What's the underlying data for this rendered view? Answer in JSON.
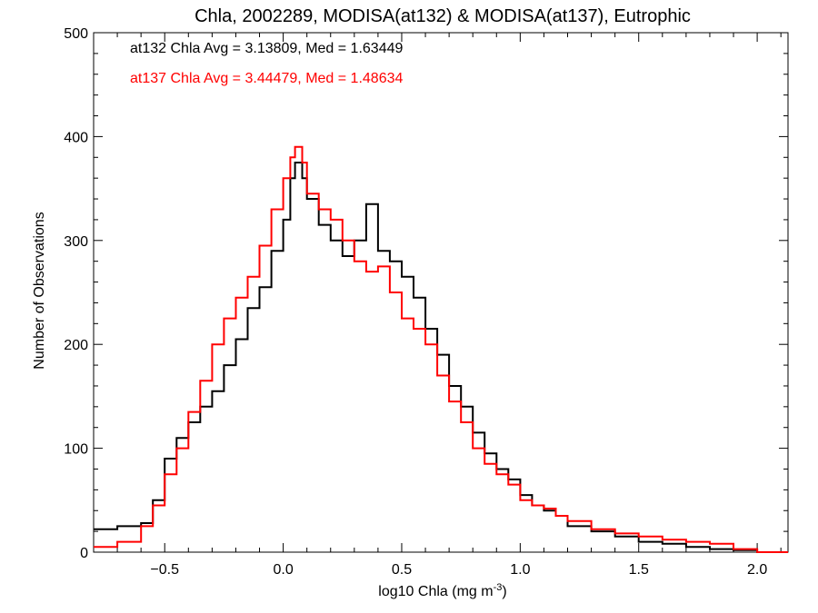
{
  "chart_data": {
    "type": "histogram",
    "title": "Chla, 2002289, MODISA(at132) & MODISA(at137), Eutrophic",
    "xlabel_main": "log10 Chla (mg m",
    "xlabel_sup": "-3",
    "xlabel_end": ")",
    "ylabel": "Number of Observations",
    "xlim": [
      -0.8,
      2.13
    ],
    "ylim": [
      0,
      500
    ],
    "x_ticks": [
      -0.5,
      0.0,
      0.5,
      1.0,
      1.5,
      2.0
    ],
    "x_tick_labels": [
      "−0.5",
      "0.0",
      "0.5",
      "1.0",
      "1.5",
      "2.0"
    ],
    "y_ticks": [
      0,
      100,
      200,
      300,
      400,
      500
    ],
    "y_tick_labels": [
      "0",
      "100",
      "200",
      "300",
      "400",
      "500"
    ],
    "annotations": [
      {
        "text": "at132 Chla Avg = 3.13809, Med = 1.63449",
        "color": "#000000"
      },
      {
        "text": "at137 Chla Avg = 3.44479, Med = 1.48634",
        "color": "#ff0000"
      }
    ],
    "series": [
      {
        "color": "#000000",
        "x": [
          -0.8,
          -0.7,
          -0.6,
          -0.55,
          -0.5,
          -0.45,
          -0.4,
          -0.35,
          -0.3,
          -0.25,
          -0.2,
          -0.15,
          -0.1,
          -0.05,
          0.0,
          0.03,
          0.05,
          0.08,
          0.1,
          0.15,
          0.2,
          0.25,
          0.3,
          0.35,
          0.4,
          0.45,
          0.5,
          0.55,
          0.6,
          0.65,
          0.7,
          0.75,
          0.8,
          0.85,
          0.9,
          0.95,
          1.0,
          1.05,
          1.1,
          1.15,
          1.2,
          1.3,
          1.4,
          1.5,
          1.6,
          1.7,
          1.8,
          1.9,
          2.0,
          2.13
        ],
        "y": [
          22,
          25,
          28,
          50,
          90,
          110,
          125,
          140,
          155,
          180,
          205,
          235,
          255,
          290,
          320,
          360,
          375,
          360,
          340,
          315,
          300,
          285,
          300,
          335,
          290,
          280,
          265,
          245,
          215,
          190,
          160,
          140,
          115,
          95,
          80,
          70,
          55,
          45,
          40,
          35,
          25,
          20,
          15,
          10,
          8,
          5,
          3,
          2,
          0,
          0
        ]
      },
      {
        "color": "#ff0000",
        "x": [
          -0.8,
          -0.7,
          -0.6,
          -0.55,
          -0.5,
          -0.45,
          -0.4,
          -0.35,
          -0.3,
          -0.25,
          -0.2,
          -0.15,
          -0.1,
          -0.05,
          0.0,
          0.03,
          0.05,
          0.08,
          0.1,
          0.15,
          0.2,
          0.25,
          0.3,
          0.35,
          0.4,
          0.45,
          0.5,
          0.55,
          0.6,
          0.65,
          0.7,
          0.75,
          0.8,
          0.85,
          0.9,
          0.95,
          1.0,
          1.05,
          1.1,
          1.15,
          1.2,
          1.3,
          1.4,
          1.5,
          1.6,
          1.7,
          1.8,
          1.9,
          2.0,
          2.13
        ],
        "y": [
          5,
          10,
          25,
          45,
          75,
          100,
          135,
          165,
          200,
          225,
          245,
          265,
          295,
          330,
          360,
          380,
          390,
          375,
          345,
          330,
          320,
          300,
          280,
          270,
          275,
          250,
          225,
          215,
          200,
          170,
          145,
          125,
          100,
          85,
          75,
          65,
          50,
          45,
          42,
          35,
          30,
          22,
          18,
          15,
          12,
          10,
          8,
          3,
          0,
          0
        ]
      }
    ]
  }
}
